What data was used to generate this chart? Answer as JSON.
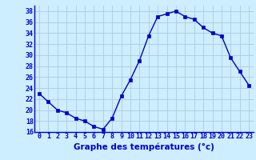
{
  "hours": [
    0,
    1,
    2,
    3,
    4,
    5,
    6,
    7,
    8,
    9,
    10,
    11,
    12,
    13,
    14,
    15,
    16,
    17,
    18,
    19,
    20,
    21,
    22,
    23
  ],
  "temperatures": [
    23.0,
    21.5,
    20.0,
    19.5,
    18.5,
    18.0,
    17.0,
    16.5,
    18.5,
    22.5,
    25.5,
    29.0,
    33.5,
    37.0,
    37.5,
    38.0,
    37.0,
    36.5,
    35.0,
    34.0,
    33.5,
    29.5,
    27.0,
    24.5
  ],
  "line_color": "#0000cc",
  "marker": "s",
  "marker_size": 2.5,
  "bg_color": "#cceeff",
  "grid_color": "#aaccdd",
  "xlabel": "Graphe des températures (°c)",
  "xlabel_color": "#0000cc",
  "xlabel_fontsize": 7.5,
  "tick_color": "#0000cc",
  "tick_fontsize": 6,
  "ylim": [
    16,
    39
  ],
  "yticks": [
    16,
    18,
    20,
    22,
    24,
    26,
    28,
    30,
    32,
    34,
    36,
    38
  ],
  "xlim": [
    -0.5,
    23.5
  ],
  "xticks": [
    0,
    1,
    2,
    3,
    4,
    5,
    6,
    7,
    8,
    9,
    10,
    11,
    12,
    13,
    14,
    15,
    16,
    17,
    18,
    19,
    20,
    21,
    22,
    23
  ]
}
